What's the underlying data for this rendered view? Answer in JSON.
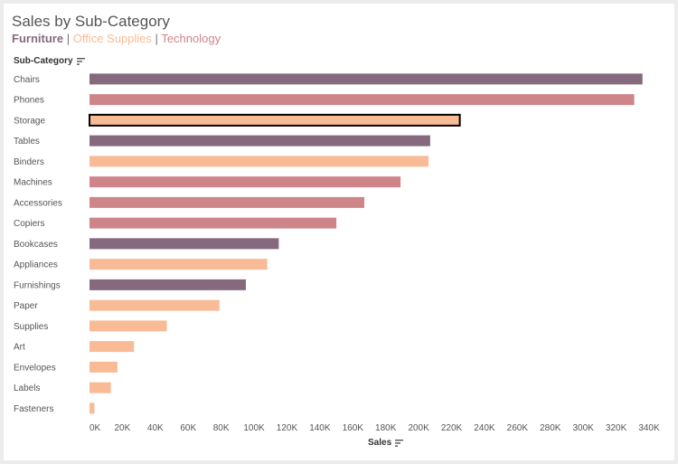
{
  "header": {
    "title": "Sales by Sub-Category",
    "legend": [
      {
        "label": "Furniture",
        "color": "#85697e"
      },
      {
        "label": "Office Supplies",
        "color": "#f9bb96"
      },
      {
        "label": "Technology",
        "color": "#ce8589"
      }
    ],
    "separator": "|"
  },
  "row_header": "Sub-Category",
  "x_header": "Sales",
  "chart_data": {
    "type": "bar",
    "orientation": "horizontal",
    "title": "Sales by Sub-Category",
    "xlabel": "Sales",
    "ylabel": "Sub-Category",
    "xlim": [
      0,
      340000
    ],
    "grid": false,
    "categories": [
      "Chairs",
      "Phones",
      "Storage",
      "Tables",
      "Binders",
      "Machines",
      "Accessories",
      "Copiers",
      "Bookcases",
      "Appliances",
      "Furnishings",
      "Paper",
      "Supplies",
      "Art",
      "Envelopes",
      "Labels",
      "Fasteners"
    ],
    "values": [
      336000,
      331000,
      225000,
      207000,
      206000,
      189000,
      167000,
      150000,
      115000,
      108000,
      95000,
      79000,
      47000,
      27000,
      17000,
      13000,
      3000
    ],
    "category_group": [
      "Furniture",
      "Technology",
      "Office Supplies",
      "Furniture",
      "Office Supplies",
      "Technology",
      "Technology",
      "Technology",
      "Furniture",
      "Office Supplies",
      "Furniture",
      "Office Supplies",
      "Office Supplies",
      "Office Supplies",
      "Office Supplies",
      "Office Supplies",
      "Office Supplies"
    ],
    "colors": {
      "Furniture": "#85697e",
      "Office Supplies": "#f9bb96",
      "Technology": "#ce8589"
    },
    "highlighted": "Storage",
    "x_ticks": [
      {
        "value": 0,
        "label": "0K"
      },
      {
        "value": 20000,
        "label": "20K"
      },
      {
        "value": 40000,
        "label": "40K"
      },
      {
        "value": 60000,
        "label": "60K"
      },
      {
        "value": 80000,
        "label": "80K"
      },
      {
        "value": 100000,
        "label": "100K"
      },
      {
        "value": 120000,
        "label": "120K"
      },
      {
        "value": 140000,
        "label": "140K"
      },
      {
        "value": 160000,
        "label": "160K"
      },
      {
        "value": 180000,
        "label": "180K"
      },
      {
        "value": 200000,
        "label": "200K"
      },
      {
        "value": 220000,
        "label": "220K"
      },
      {
        "value": 240000,
        "label": "240K"
      },
      {
        "value": 260000,
        "label": "260K"
      },
      {
        "value": 280000,
        "label": "280K"
      },
      {
        "value": 300000,
        "label": "300K"
      },
      {
        "value": 320000,
        "label": "320K"
      },
      {
        "value": 340000,
        "label": "340K"
      }
    ]
  }
}
